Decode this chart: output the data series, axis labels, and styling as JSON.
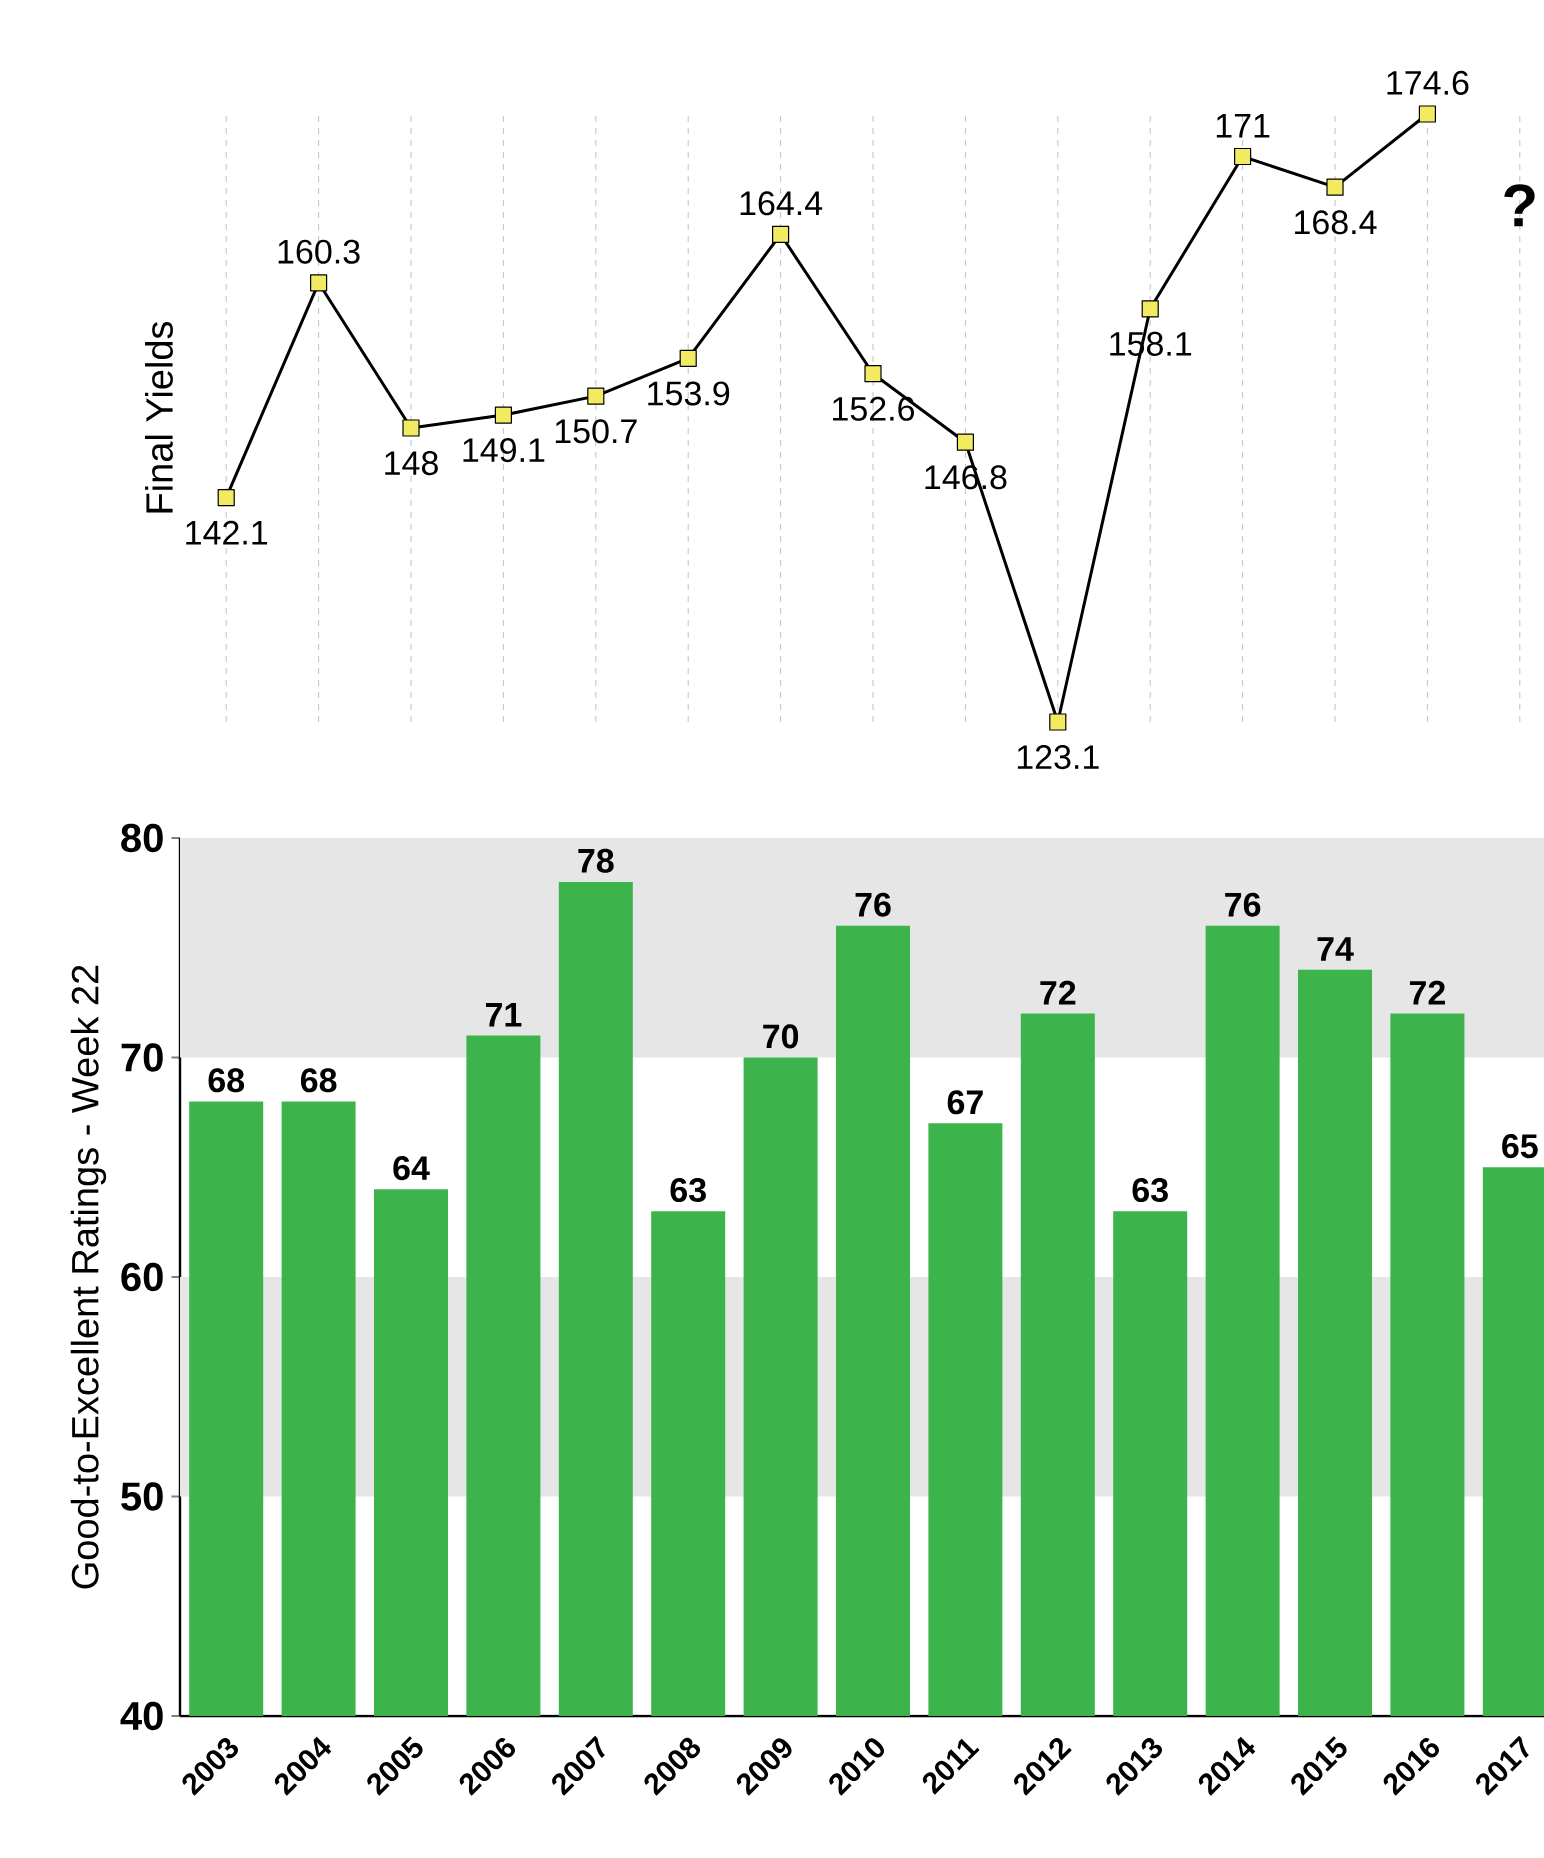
{
  "chart_data": [
    {
      "type": "line",
      "ylabel": "Final Yields",
      "categories": [
        "2003",
        "2004",
        "2005",
        "2006",
        "2007",
        "2008",
        "2009",
        "2010",
        "2011",
        "2012",
        "2013",
        "2014",
        "2015",
        "2016",
        "2017"
      ],
      "series": [
        {
          "color": "#000000",
          "values": [
            142.1,
            160.3,
            148,
            149.1,
            150.7,
            153.9,
            164.4,
            152.6,
            146.8,
            123.1,
            158.1,
            171,
            168.4,
            174.6,
            null
          ]
        }
      ],
      "marker": "square",
      "data_labels": true,
      "grid": "x",
      "tick_labels": false,
      "annotations": [
        "?"
      ]
    },
    {
      "type": "bar",
      "ylabel": "Good-to-Excellent Ratings - Week 22",
      "categories": [
        "2003",
        "2004",
        "2005",
        "2006",
        "2007",
        "2008",
        "2009",
        "2010",
        "2011",
        "2012",
        "2013",
        "2014",
        "2015",
        "2016",
        "2017"
      ],
      "values": [
        68,
        68,
        64,
        71,
        78,
        63,
        70,
        76,
        67,
        72,
        63,
        76,
        74,
        72,
        65
      ],
      "color": "#3cb44b",
      "ylim": [
        40,
        80
      ],
      "yticks": [
        40,
        50,
        60,
        70,
        80
      ],
      "data_labels": true,
      "bands": [
        {
          "axis": "y",
          "from": 50,
          "to": 60,
          "color": "#e6e6e6"
        },
        {
          "axis": "y",
          "from": 70,
          "to": 80,
          "color": "#e6e6e6"
        }
      ]
    }
  ]
}
